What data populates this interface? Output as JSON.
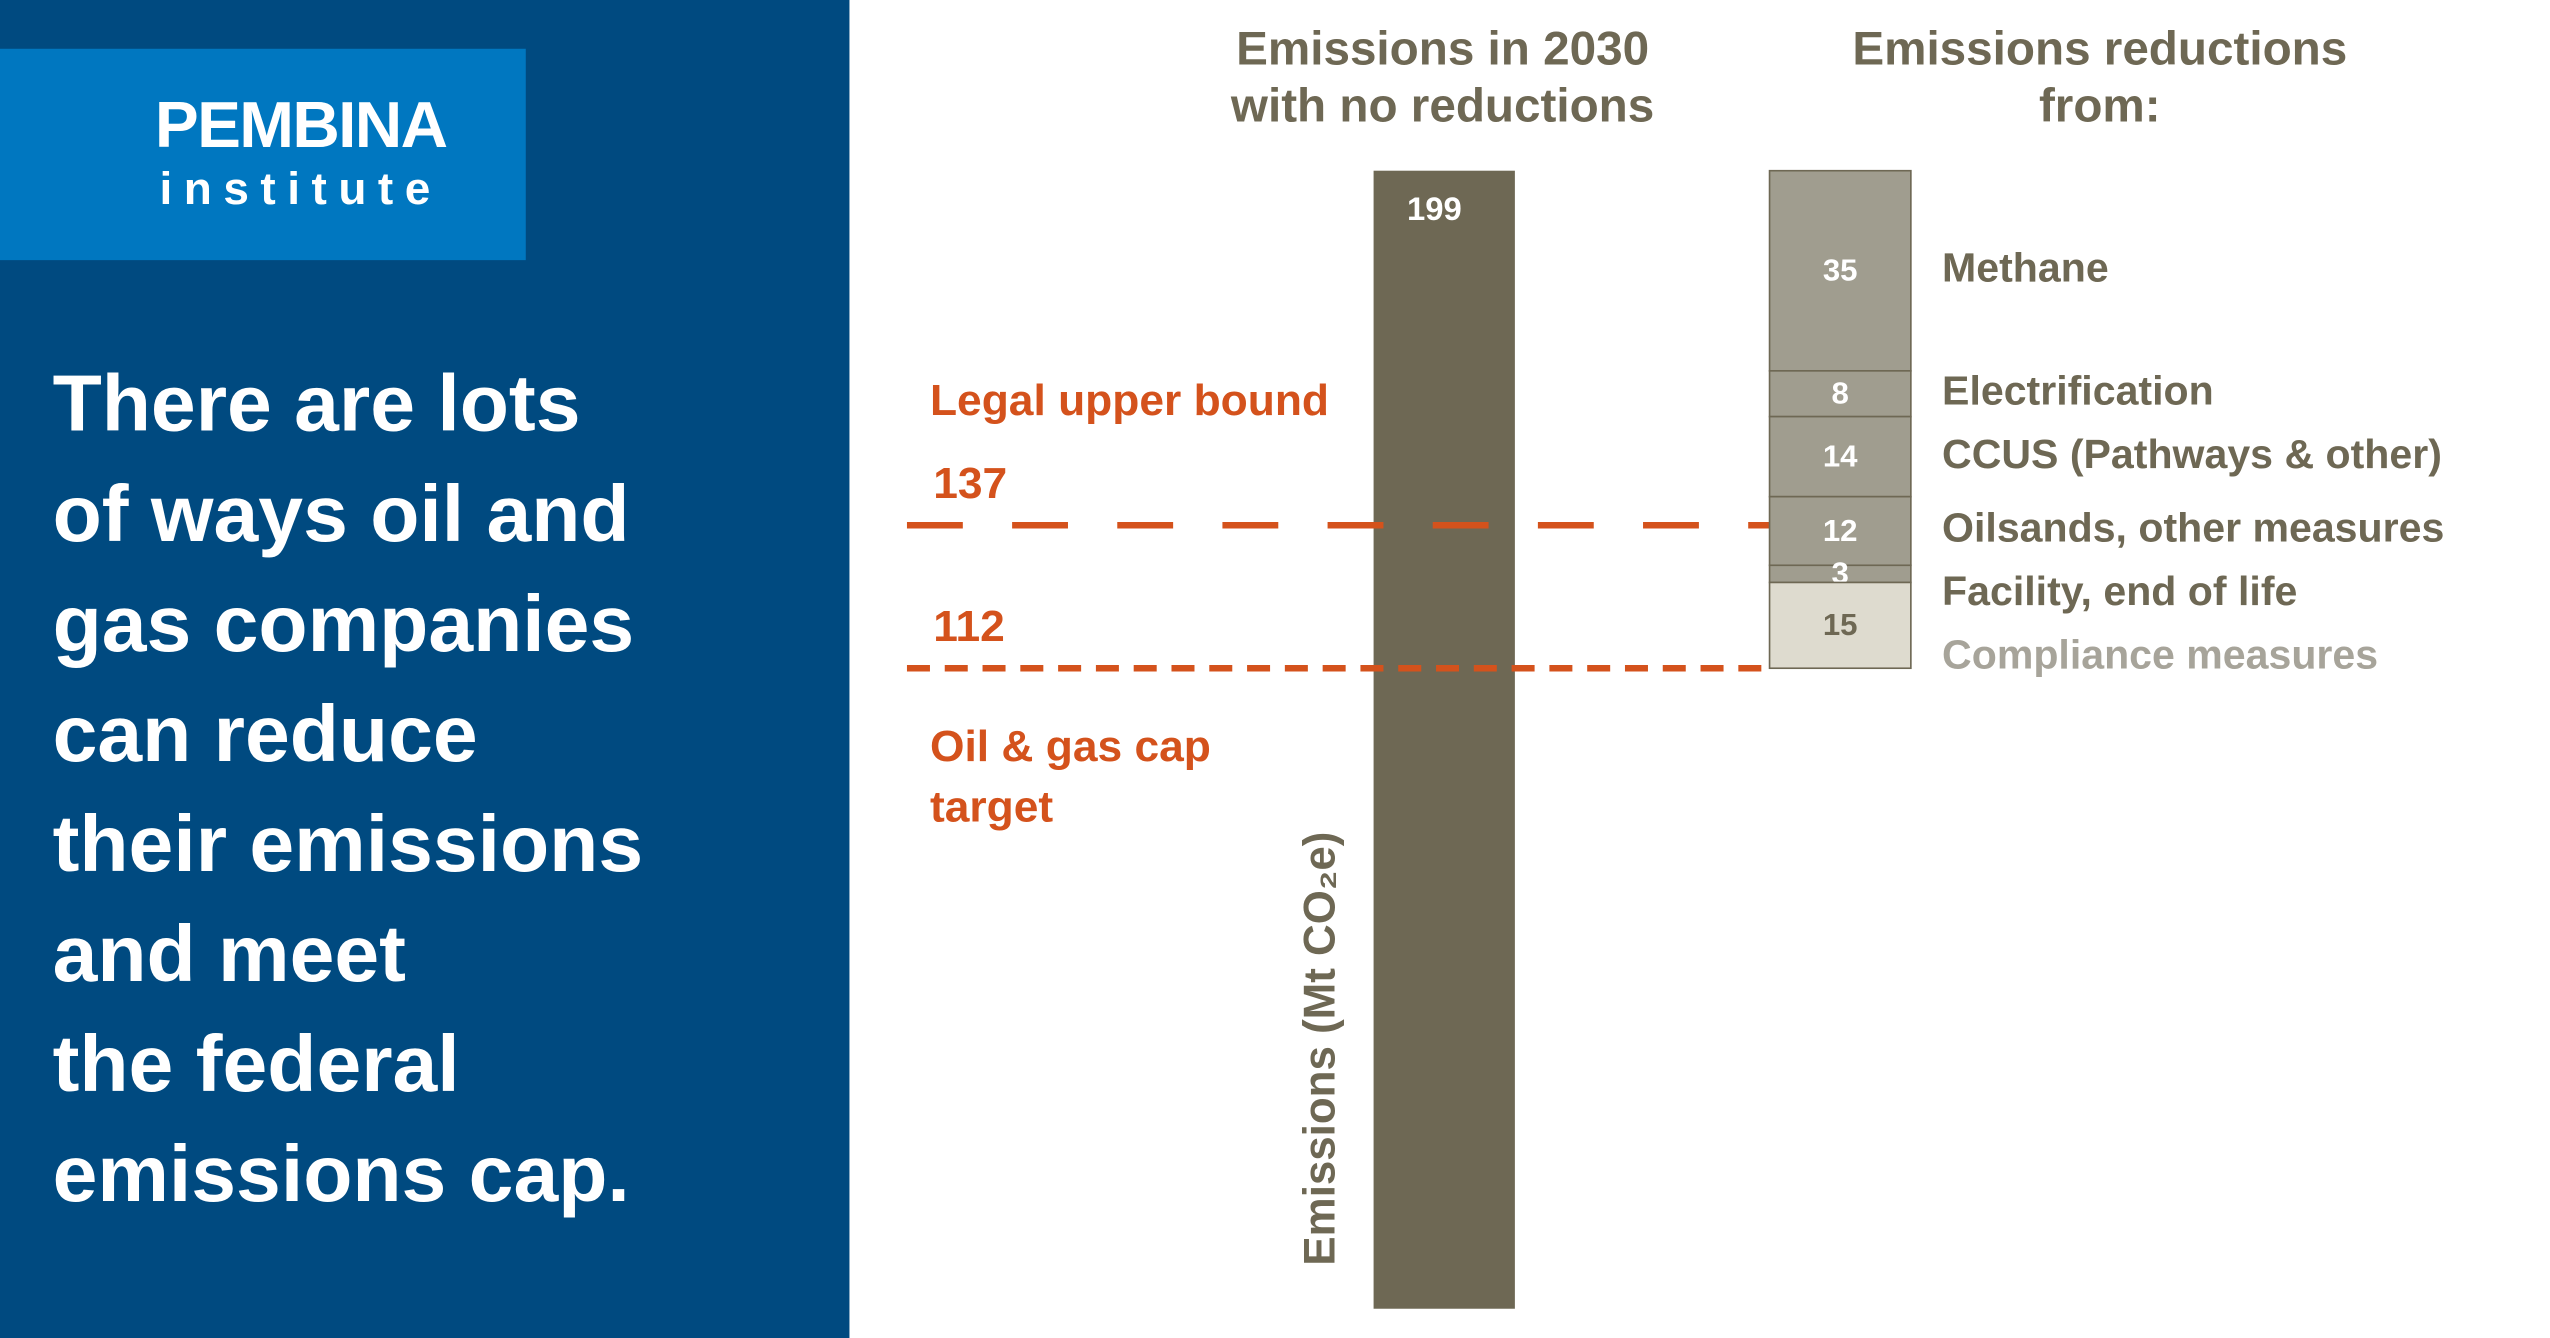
{
  "panel": {
    "logo": [
      "PEMBINA",
      "institute"
    ],
    "headline": [
      "There are lots",
      "of ways oil and",
      "gas companies",
      "can reduce",
      "their emissions",
      "and meet",
      "the federal",
      "emissions cap."
    ]
  },
  "chart_data": {
    "type": "bar",
    "titles": [
      [
        "Emissions in 2030",
        "with no reductions"
      ],
      [
        "Emissions reductions",
        "from:"
      ]
    ],
    "y_label": "Emissions (Mt CO₂e)",
    "total": {
      "value": 199,
      "color": "#6e6854"
    },
    "series": [
      {
        "name": "Methane",
        "value": 35,
        "color": "#a09d8f",
        "label_color": "#6e6854"
      },
      {
        "name": "Electrification",
        "value": 8,
        "color": "#a09d8f",
        "label_color": "#6e6854"
      },
      {
        "name": "CCUS (Pathways & other)",
        "value": 14,
        "color": "#a09d8f",
        "label_color": "#6e6854"
      },
      {
        "name": "Oilsands, other measures",
        "value": 12,
        "color": "#a09d8f",
        "label_color": "#6e6854"
      },
      {
        "name": "Facility, end of life",
        "value": 3,
        "color": "#a09d8f",
        "label_color": "#6e6854"
      },
      {
        "name": "Compliance measures",
        "value": 15,
        "color": "#dedbcf",
        "label_color": "#a7a49a"
      }
    ],
    "reference_lines": [
      {
        "value": 137,
        "label": [
          "Legal upper bound"
        ],
        "label_position": "above",
        "style": "long-dash",
        "color": "#d4521c"
      },
      {
        "value": 112,
        "label": [
          "Oil & gas cap",
          "target"
        ],
        "label_position": "below",
        "style": "short-dash",
        "color": "#d4521c"
      }
    ]
  }
}
